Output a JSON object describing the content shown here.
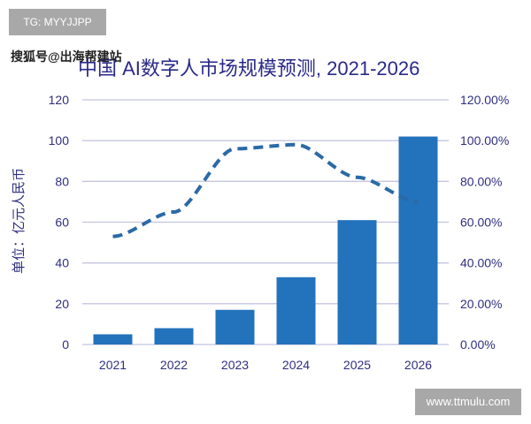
{
  "watermark_top": "TG: MYYJJPP",
  "watermark_source": "搜狐号@出海帮建站",
  "watermark_bottom": "www.ttmulu.com",
  "chart_data": {
    "type": "bar+line",
    "title": "中国 AI数字人市场规模预测, 2021-2026",
    "ylabel": "单位：亿元人民币",
    "categories": [
      "2021",
      "2022",
      "2023",
      "2024",
      "2025",
      "2026"
    ],
    "series": [
      {
        "type": "bar",
        "axis": "left",
        "values": [
          5,
          8,
          17,
          33,
          61,
          102
        ],
        "color": "#2372bc"
      },
      {
        "type": "line",
        "style": "dashed",
        "axis": "right",
        "values": [
          53,
          65,
          96,
          98,
          82,
          70
        ],
        "color": "#2a6aa6"
      }
    ],
    "ylim": [
      0,
      120
    ],
    "yticks": [
      "0",
      "20",
      "40",
      "60",
      "80",
      "100",
      "120"
    ],
    "y2lim": [
      0,
      120
    ],
    "y2ticks": [
      "0.00%",
      "20.00%",
      "40.00%",
      "60.00%",
      "80.00%",
      "100.00%",
      "120.00%"
    ],
    "grid": true
  }
}
